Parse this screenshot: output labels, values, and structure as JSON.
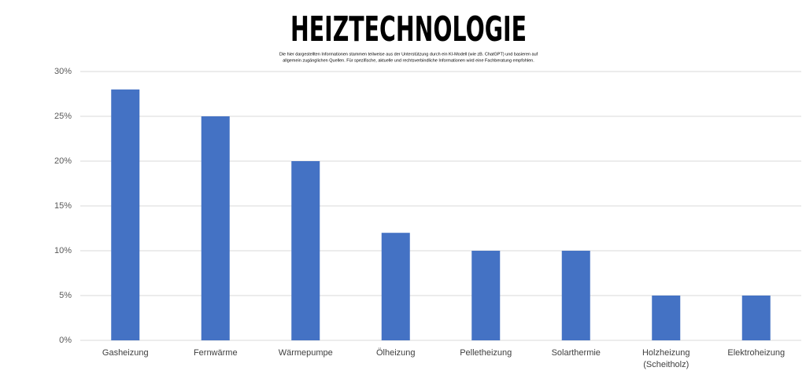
{
  "chart_data": {
    "type": "bar",
    "title": "HEIZTECHNOLOGIE",
    "subtitle": [
      "Die hier dargestellten Informationen stammen teilweise aus der Unterstützung durch ein KI-Modell (wie zB. ChatGPT) und basieren auf",
      "allgemein zugänglichen Quellen. Für spezifische, aktuelle und rechtsverbindliche Informationen wird eine Fachberatung empfohlen."
    ],
    "categories": [
      "Gasheizung",
      "Fernwärme",
      "Wärmepumpe",
      "Ölheizung",
      "Pelletheizung",
      "Solarthermie",
      "Holzheizung (Scheitholz)",
      "Elektroheizung"
    ],
    "values": [
      28,
      25,
      20,
      12,
      10,
      10,
      5,
      5
    ],
    "color": "#4472c4",
    "ylim": [
      0,
      30
    ],
    "yticks": [
      {
        "value": 0,
        "label": "0%"
      },
      {
        "value": 5,
        "label": "5%"
      },
      {
        "value": 10,
        "label": "10%"
      },
      {
        "value": 15,
        "label": "15%"
      },
      {
        "value": 20,
        "label": "20%"
      },
      {
        "value": 25,
        "label": "25%"
      },
      {
        "value": 30,
        "label": "30%"
      }
    ],
    "grid": true
  }
}
